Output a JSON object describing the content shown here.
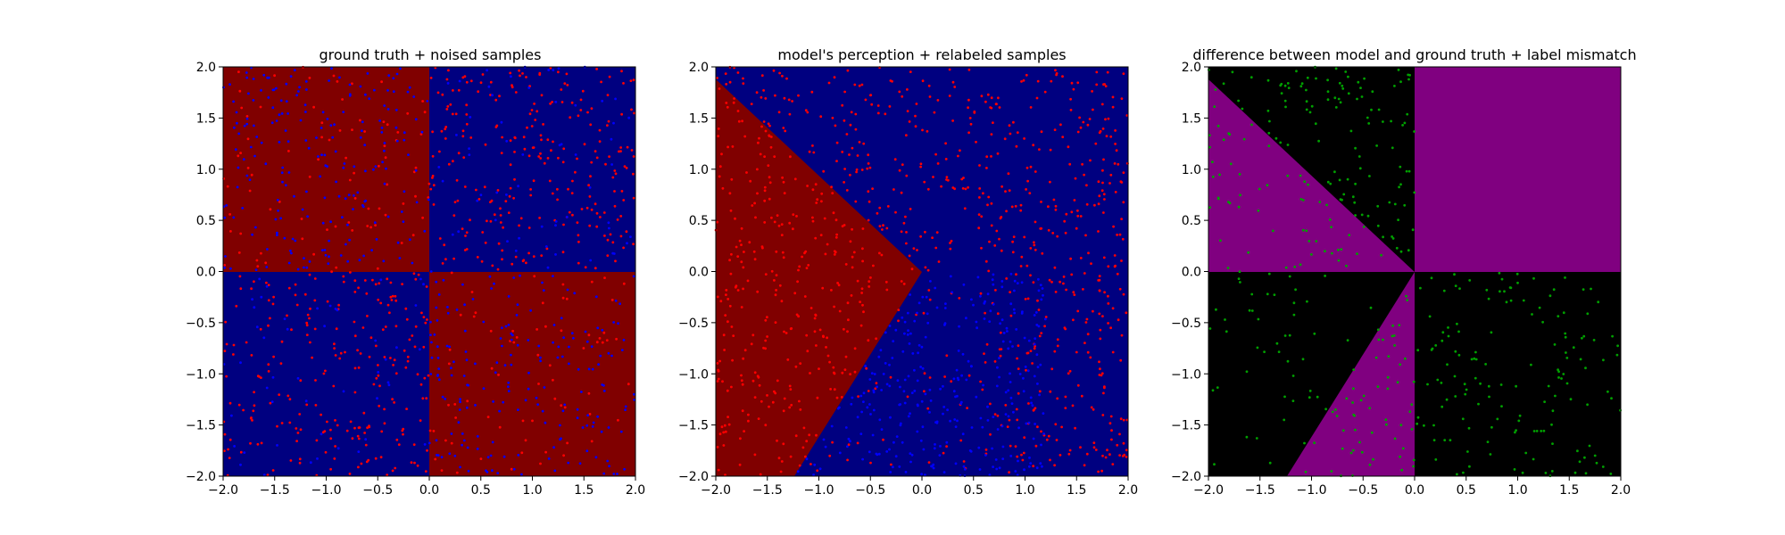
{
  "colors": {
    "dark_red": "#800000",
    "dark_blue": "#000080",
    "purple": "#800080",
    "black": "#000000",
    "red_point": "#ff0000",
    "blue_point": "#0000ff",
    "green_point": "#00a000"
  },
  "chart_data": [
    {
      "type": "scatter",
      "title": "ground truth + noised samples",
      "xlim": [
        -2.0,
        2.0
      ],
      "ylim": [
        -2.0,
        2.0
      ],
      "xticks": [
        "−2.0",
        "−1.5",
        "−1.0",
        "−0.5",
        "0.0",
        "0.5",
        "1.0",
        "1.5",
        "2.0"
      ],
      "yticks": [
        "−2.0",
        "−1.5",
        "−1.0",
        "−0.5",
        "0.0",
        "0.5",
        "1.0",
        "1.5",
        "2.0"
      ],
      "background": "quadrants: x<0,y>0 and x>0,y<0 dark red; x>0,y>0 and x<0,y<0 dark blue",
      "series": [
        {
          "color": "#ff0000",
          "approx_count": 640,
          "region": "mostly dark blue quadrants"
        },
        {
          "color": "#0000ff",
          "approx_count": 500,
          "region": "mostly dark red quadrants"
        }
      ]
    },
    {
      "type": "scatter",
      "title": "model's perception + relabeled samples",
      "xlim": [
        -2.0,
        2.0
      ],
      "ylim": [
        -2.0,
        2.0
      ],
      "xticks": [
        "−2.0",
        "−1.5",
        "−1.0",
        "−0.5",
        "0.0",
        "0.5",
        "1.0",
        "1.5",
        "2.0"
      ],
      "yticks": [
        "−2.0",
        "−1.5",
        "−1.0",
        "−0.5",
        "0.0",
        "0.5",
        "1.0",
        "1.5",
        "2.0"
      ],
      "background": "dark red wedge left of lines from (0,0) to (-2,1.88) and (0,0) to (-1.25,-2); dark blue elsewhere",
      "series": [
        {
          "color": "#ff0000",
          "approx_count": 900,
          "region": "left wedge and upper/right"
        },
        {
          "color": "#0000ff",
          "approx_count": 300,
          "region": "lower wedge"
        }
      ]
    },
    {
      "type": "scatter",
      "title": "difference between model and ground truth + label mismatch",
      "xlim": [
        -2.0,
        2.0
      ],
      "ylim": [
        -2.0,
        2.0
      ],
      "xticks": [
        "−2.0",
        "−1.5",
        "−1.0",
        "−0.5",
        "0.0",
        "0.5",
        "1.0",
        "1.5",
        "2.0"
      ],
      "yticks": [
        "−2.0",
        "−1.5",
        "−1.0",
        "−0.5",
        "0.0",
        "0.5",
        "1.0",
        "1.5",
        "2.0"
      ],
      "background": "purple where model and ground truth differ: upper-right quadrant, upper-left wedge, lower-left wedge; black elsewhere",
      "series": [
        {
          "color": "#00a000",
          "approx_count": 420,
          "region": "mismatched labels"
        }
      ]
    }
  ]
}
